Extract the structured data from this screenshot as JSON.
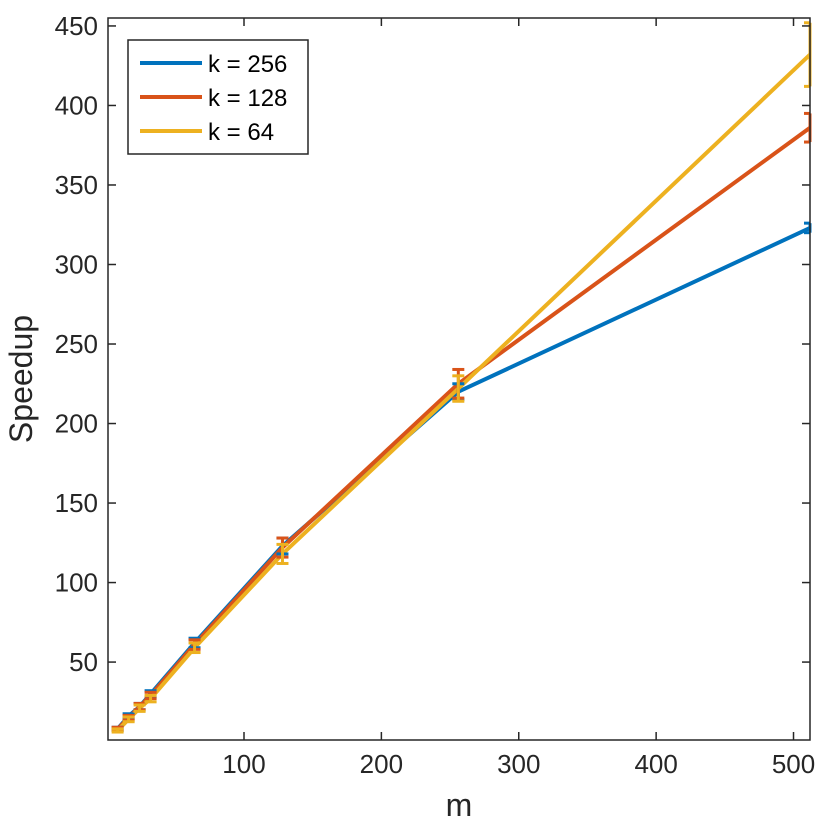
{
  "chart_data": {
    "type": "line",
    "title": "",
    "xlabel": "m",
    "ylabel": "Speedup",
    "xlim": [
      1,
      512
    ],
    "ylim": [
      1,
      455
    ],
    "xticks": [
      100,
      200,
      300,
      400,
      500
    ],
    "yticks": [
      50,
      100,
      150,
      200,
      250,
      300,
      350,
      400,
      450
    ],
    "grid": false,
    "legend_position": "top-left",
    "x": [
      8,
      16,
      24,
      32,
      64,
      128,
      256,
      512
    ],
    "series": [
      {
        "name": "k = 256",
        "color": "#0072BD",
        "values": [
          8,
          16,
          22,
          30,
          62,
          123,
          220,
          323
        ],
        "err": [
          1,
          1.5,
          2,
          2,
          3,
          5,
          5,
          3
        ]
      },
      {
        "name": "k = 128",
        "color": "#D95319",
        "values": [
          8,
          15,
          22,
          29,
          61,
          122,
          225,
          386
        ],
        "err": [
          1,
          1.5,
          2,
          2,
          3,
          6,
          9,
          9
        ]
      },
      {
        "name": "k = 64",
        "color": "#EDB120",
        "values": [
          7,
          14,
          21,
          27,
          59,
          118,
          222,
          432
        ],
        "err": [
          1,
          1.5,
          2,
          2,
          3,
          6,
          8,
          20
        ]
      }
    ]
  }
}
